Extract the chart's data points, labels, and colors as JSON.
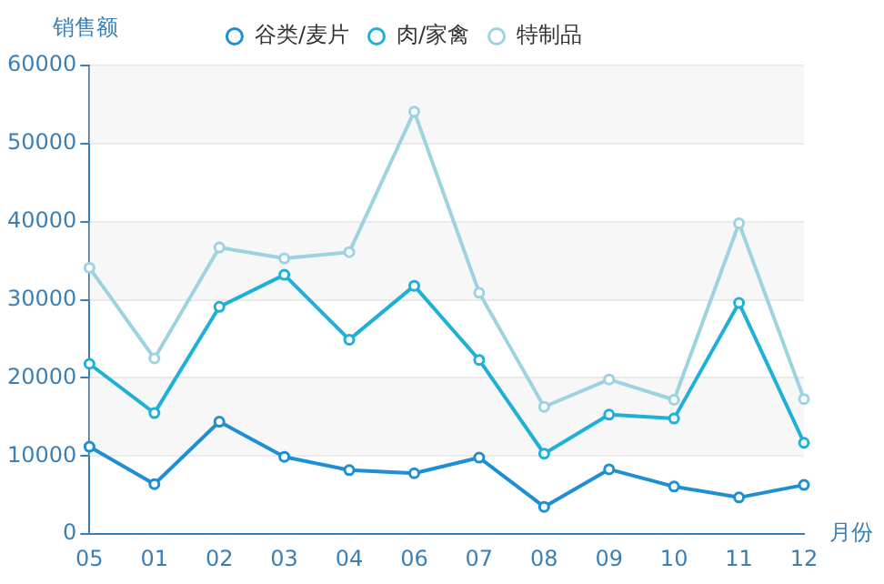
{
  "chart_data": {
    "type": "line",
    "xlabel": "月份",
    "ylabel": "销售额",
    "categories": [
      "05",
      "01",
      "02",
      "03",
      "04",
      "06",
      "07",
      "08",
      "09",
      "10",
      "11",
      "12"
    ],
    "ylim": [
      0,
      60000
    ],
    "yticks": [
      0,
      10000,
      20000,
      30000,
      40000,
      50000,
      60000
    ],
    "grid": "y",
    "legend": "top",
    "marker": "circle",
    "series": [
      {
        "name": "谷类/麦片",
        "color": "#1e8fd2",
        "values": [
          11200,
          6400,
          14400,
          9900,
          8200,
          7800,
          9800,
          3500,
          8300,
          6100,
          4700,
          6300
        ]
      },
      {
        "name": "肉/家禽",
        "color": "#1fb0d8",
        "values": [
          21800,
          15500,
          29100,
          33200,
          24900,
          31800,
          22300,
          10300,
          15300,
          14800,
          29600,
          11700
        ]
      },
      {
        "name": "特制品",
        "color": "#9dd3e0",
        "values": [
          34100,
          22500,
          36700,
          35300,
          36100,
          54100,
          30900,
          16300,
          19800,
          17200,
          39800,
          17300
        ]
      }
    ]
  }
}
